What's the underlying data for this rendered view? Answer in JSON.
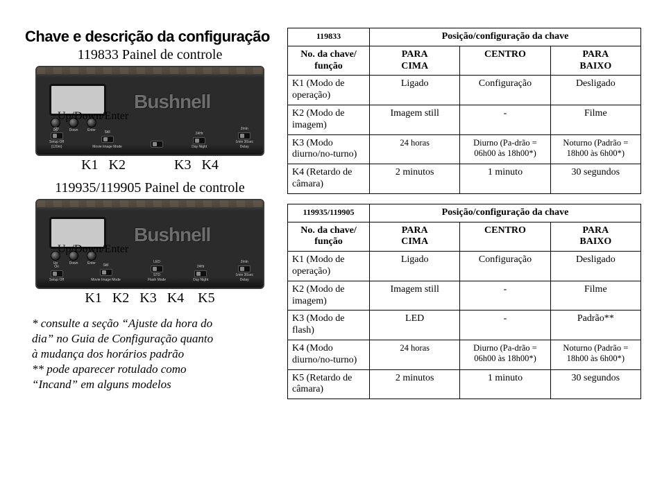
{
  "title": "Chave e descrição da configuração",
  "panels": {
    "p1": {
      "subtitle": "119833 Painel de controle",
      "overlay": "Up/Down/Enter",
      "brand": "Bushnell",
      "btn_labels": [
        "Up",
        "Down",
        "Enter"
      ],
      "sw": [
        {
          "top": "On",
          "mid": "Setup",
          "bot": "Off",
          "below": "(120m)"
        },
        {
          "top": "Still",
          "mid": "",
          "bot": "",
          "below": "Movie  Image\nMode"
        },
        {
          "top": "",
          "mid": "",
          "bot": "",
          "below": ""
        },
        {
          "top": "24Hr",
          "mid": "Day",
          "bot": "Night",
          "below": ""
        },
        {
          "top": "2min",
          "mid": "1min",
          "bot": "30sec",
          "below": "Delay"
        }
      ],
      "k_html": "K1&nbsp;&nbsp;&nbsp;K2&nbsp;&nbsp;&nbsp;&nbsp;&nbsp;&nbsp;&nbsp;&nbsp;&nbsp;&nbsp;&nbsp;&nbsp;&nbsp;&nbsp;K3&nbsp;&nbsp;&nbsp;K4"
    },
    "p2": {
      "subtitle": "119935/119905 Painel de controle",
      "overlay": "Up/Down/Enter",
      "brand": "Bushnell",
      "btn_labels": [
        "Up",
        "Down",
        "Enter"
      ],
      "sw": [
        {
          "top": "On",
          "mid": "Setup",
          "bot": "Off",
          "below": ""
        },
        {
          "top": "Still",
          "mid": "",
          "bot": "",
          "below": "Movie  Image\nMode"
        },
        {
          "top": "LED",
          "mid": "",
          "bot": "STD",
          "below": "Flash\nMode"
        },
        {
          "top": "24Hr",
          "mid": "Day",
          "bot": "Night",
          "below": ""
        },
        {
          "top": "2min",
          "mid": "1min",
          "bot": "30sec",
          "below": "Delay"
        }
      ],
      "k_html": "K1&nbsp;&nbsp;&nbsp;K2&nbsp;&nbsp;&nbsp;K3&nbsp;&nbsp;&nbsp;K4&nbsp;&nbsp;&nbsp;&nbsp;K5"
    }
  },
  "footnotes": {
    "l1": "* consulte a seção “Ajuste da hora do",
    "l2": "dia” no Guia de Configuração quanto",
    "l3": "à mudança dos horários padrão",
    "l4": "** pode aparecer rotulado como",
    "l5": "“Incand” em alguns modelos"
  },
  "tables": {
    "t1": {
      "model": "119833",
      "pos_header": "Posição/configuração da chave",
      "func_header": "No. da chave/\nfunção",
      "cols": [
        "PARA CIMA",
        "CENTRO",
        "PARA BAIXO"
      ],
      "rows": [
        {
          "f": "K1 (Modo de operação)",
          "c": [
            "Ligado",
            "Configuração",
            "Desligado"
          ]
        },
        {
          "f": "K2 (Modo de imagem)",
          "c": [
            "Imagem still",
            "-",
            "Filme"
          ]
        },
        {
          "f": "K3 (Modo diurno/no-turno)",
          "c": [
            "24 horas",
            "Diurno (Pa-drão = 06h00 às 18h00*)",
            "Noturno (Padrão = 18h00 às 6h00*)"
          ],
          "small": true
        },
        {
          "f": "K4 (Retardo de câmara)",
          "c": [
            "2 minutos",
            "1 minuto",
            "30 segundos"
          ]
        }
      ]
    },
    "t2": {
      "model": "119935/119905",
      "pos_header": "Posição/configuração da chave",
      "func_header": "No. da chave/\nfunção",
      "cols": [
        "PARA CIMA",
        "CENTRO",
        "PARA BAIXO"
      ],
      "rows": [
        {
          "f": "K1 (Modo de operação)",
          "c": [
            "Ligado",
            "Configuração",
            "Desligado"
          ]
        },
        {
          "f": "K2 (Modo de imagem)",
          "c": [
            "Imagem still",
            "-",
            "Filme"
          ]
        },
        {
          "f": "K3 (Modo de flash)",
          "c": [
            "LED",
            "-",
            "Padrão**"
          ]
        },
        {
          "f": "K4 (Modo diurno/no-turno)",
          "c": [
            "24 horas",
            "Diurno (Pa-drão = 06h00 às 18h00*)",
            "Noturno (Padrão = 18h00 às 6h00*)"
          ],
          "small": true
        },
        {
          "f": "K5 (Retardo de câmara)",
          "c": [
            "2 minutos",
            "1 minuto",
            "30 segundos"
          ]
        }
      ]
    }
  }
}
